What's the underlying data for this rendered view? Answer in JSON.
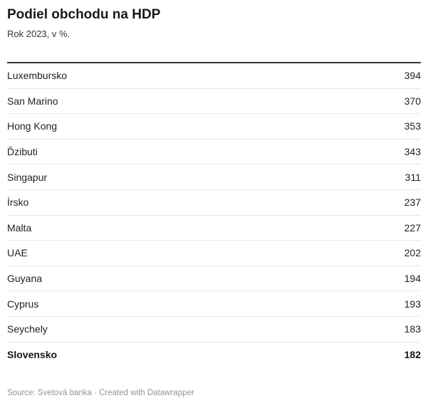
{
  "header": {
    "title": "Podiel obchodu na HDP",
    "subtitle": "Rok 2023, v %."
  },
  "chart_data": {
    "type": "table",
    "title": "Podiel obchodu na HDP",
    "subtitle": "Rok 2023, v %.",
    "categories": [
      "Luxembursko",
      "San Marino",
      "Hong Kong",
      "Ďzibuti",
      "Singapur",
      "Írsko",
      "Malta",
      "UAE",
      "Guyana",
      "Cyprus",
      "Seychely",
      "Slovensko"
    ],
    "values": [
      394,
      370,
      353,
      343,
      311,
      237,
      227,
      202,
      194,
      193,
      183,
      182
    ],
    "highlighted_category": "Slovensko",
    "value_alignment": "right",
    "grid": "horizontal-dividers",
    "legend": "none"
  },
  "table": {
    "rows": [
      {
        "label": "Luxembursko",
        "value": "394",
        "bold": false
      },
      {
        "label": "San Marino",
        "value": "370",
        "bold": false
      },
      {
        "label": "Hong Kong",
        "value": "353",
        "bold": false
      },
      {
        "label": "Ďzibuti",
        "value": "343",
        "bold": false
      },
      {
        "label": "Singapur",
        "value": "311",
        "bold": false
      },
      {
        "label": "Írsko",
        "value": "237",
        "bold": false
      },
      {
        "label": "Malta",
        "value": "227",
        "bold": false
      },
      {
        "label": "UAE",
        "value": "202",
        "bold": false
      },
      {
        "label": "Guyana",
        "value": "194",
        "bold": false
      },
      {
        "label": "Cyprus",
        "value": "193",
        "bold": false
      },
      {
        "label": "Seychely",
        "value": "183",
        "bold": false
      },
      {
        "label": "Slovensko",
        "value": "182",
        "bold": true
      }
    ]
  },
  "footer": {
    "source": "Source: Svetová banka · Created with Datawrapper"
  },
  "colors": {
    "text": "#222222",
    "title": "#1a1a1a",
    "subtitle": "#333333",
    "header_rule": "#333333",
    "row_divider": "#e8e8e8",
    "footer_text": "#949494",
    "background": "#ffffff"
  }
}
